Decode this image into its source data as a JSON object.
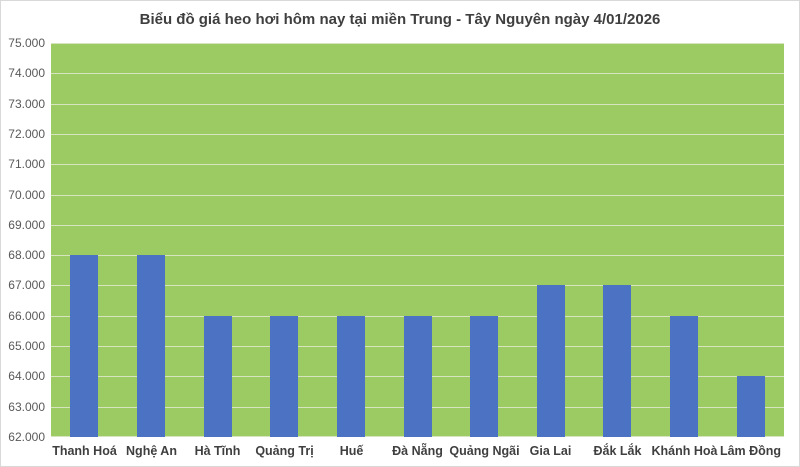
{
  "title": "Biểu đồ giá heo hơi hôm nay tại miền Trung - Tây Nguyên ngày 4/01/2026",
  "colors": {
    "bar": "#4C72C4",
    "plot_background": "#9CCB63",
    "gridline": "#D7E5BF",
    "title_text": "#3F3F3F",
    "y_tick_text": "#595959",
    "category_text": "#3F3F3F",
    "chart_border": "#D9D9D9",
    "chart_background": "#FFFFFF"
  },
  "chart_data": {
    "type": "bar",
    "title": "Biểu đồ giá heo hơi hôm nay tại miền Trung - Tây Nguyên ngày 4/01/2026",
    "categories": [
      "Thanh Hoá",
      "Nghệ An",
      "Hà Tĩnh",
      "Quảng Trị",
      "Huế",
      "Đà Nẵng",
      "Quảng Ngãi",
      "Gia Lai",
      "Đắk Lắk",
      "Khánh Hoà",
      "Lâm Đồng"
    ],
    "values": [
      68000,
      68000,
      66000,
      66000,
      66000,
      66000,
      66000,
      67000,
      67000,
      66000,
      64000
    ],
    "xlabel": "",
    "ylabel": "",
    "ylim": [
      62000,
      75000
    ],
    "ytick_step": 1000,
    "ytick_labels": [
      "62.000",
      "63.000",
      "64.000",
      "65.000",
      "66.000",
      "67.000",
      "68.000",
      "69.000",
      "70.000",
      "71.000",
      "72.000",
      "73.000",
      "74.000",
      "75.000"
    ],
    "grid": true,
    "legend": "none"
  }
}
